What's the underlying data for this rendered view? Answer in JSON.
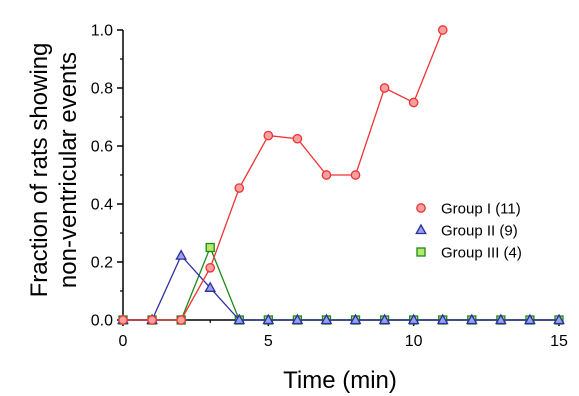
{
  "chart_data": {
    "type": "line",
    "xlabel": "Time (min)",
    "ylabel_lines": [
      "Fraction of rats showing",
      "non-ventricular events"
    ],
    "xlim": [
      0,
      15
    ],
    "ylim": [
      0,
      1.0
    ],
    "xticks": [
      0,
      5,
      10,
      15
    ],
    "yticks": [
      0.0,
      0.2,
      0.4,
      0.6,
      0.8,
      1.0
    ],
    "xtick_labels": [
      "0",
      "5",
      "10",
      "15"
    ],
    "ytick_labels": [
      "0.0",
      "0.2",
      "0.4",
      "0.6",
      "0.8",
      "1.0"
    ],
    "grid": false,
    "legend_position": "right",
    "series": [
      {
        "name": "Group I (11)",
        "marker": "circle",
        "color": "#ee3333",
        "fill": "#f7a0a0",
        "x": [
          0,
          1,
          2,
          3,
          4,
          5,
          6,
          7,
          8,
          9,
          10,
          11
        ],
        "y": [
          0.0,
          0.0,
          0.0,
          0.18,
          0.455,
          0.636,
          0.625,
          0.5,
          0.5,
          0.8,
          0.75,
          1.0
        ]
      },
      {
        "name": "Group II (9)",
        "marker": "triangle",
        "color": "#2b2f9e",
        "fill": "#9aa0ee",
        "x": [
          0,
          1,
          2,
          3,
          4,
          5,
          6,
          7,
          8,
          9,
          10,
          11,
          12,
          13,
          14,
          15
        ],
        "y": [
          0.0,
          0.0,
          0.222,
          0.111,
          0.0,
          0.0,
          0.0,
          0.0,
          0.0,
          0.0,
          0.0,
          0.0,
          0.0,
          0.0,
          0.0,
          0.0
        ]
      },
      {
        "name": "Group III (4)",
        "marker": "square",
        "color": "#1a8a1a",
        "fill": "#b8e86a",
        "x": [
          0,
          1,
          2,
          3,
          4,
          5,
          6,
          7,
          8,
          9,
          10,
          11,
          12,
          13,
          14,
          15
        ],
        "y": [
          0.0,
          0.0,
          0.0,
          0.25,
          0.0,
          0.0,
          0.0,
          0.0,
          0.0,
          0.0,
          0.0,
          0.0,
          0.0,
          0.0,
          0.0,
          0.0
        ]
      }
    ]
  }
}
